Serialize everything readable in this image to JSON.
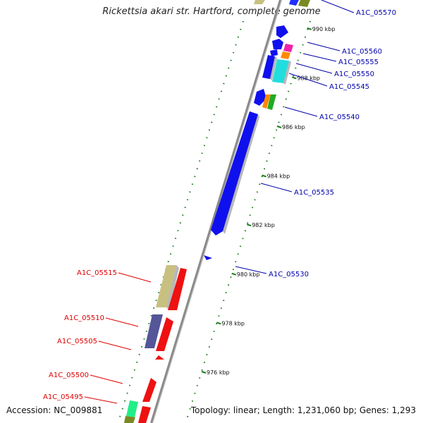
{
  "title": "Rickettsia akari str. Hartford, complete genome",
  "footer": {
    "accession": "Accession: NC_009881",
    "summary": "Topology: linear; Length: 1,231,060 bp; Genes: 1,293"
  },
  "colors": {
    "forward_label": "#0000aa",
    "reverse_label": "#dd0000",
    "backbone": "#8a8a8a",
    "ticks": "#1a7a1a"
  },
  "scale_ticks": [
    {
      "pos": 976,
      "label": "976 kbp"
    },
    {
      "pos": 978,
      "label": "978 kbp"
    },
    {
      "pos": 980,
      "label": "980 kbp"
    },
    {
      "pos": 982,
      "label": "982 kbp"
    },
    {
      "pos": 984,
      "label": "984 kbp"
    },
    {
      "pos": 986,
      "label": "986 kbp"
    },
    {
      "pos": 988,
      "label": "988 kbp"
    },
    {
      "pos": 990,
      "label": "990 kbp"
    }
  ],
  "forward_genes": [
    {
      "name": "A1C_05570"
    },
    {
      "name": "A1C_05560"
    },
    {
      "name": "A1C_05555"
    },
    {
      "name": "A1C_05550"
    },
    {
      "name": "A1C_05545"
    },
    {
      "name": "A1C_05540"
    },
    {
      "name": "A1C_05535"
    },
    {
      "name": "A1C_05530"
    }
  ],
  "reverse_genes": [
    {
      "name": "A1C_05515"
    },
    {
      "name": "A1C_05510"
    },
    {
      "name": "A1C_05505"
    },
    {
      "name": "A1C_05500"
    },
    {
      "name": "A1C_05495"
    }
  ]
}
